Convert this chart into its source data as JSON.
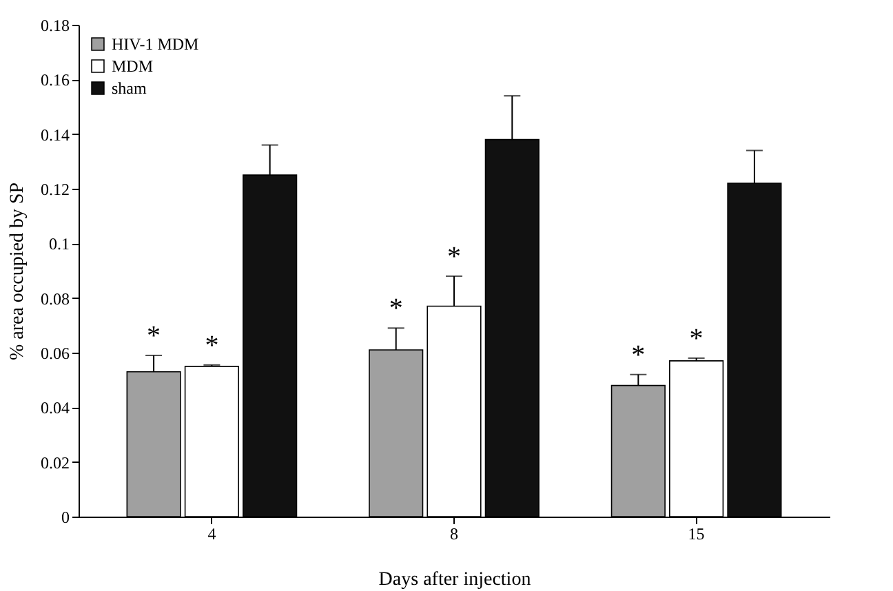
{
  "chart_data": {
    "type": "bar",
    "xlabel": "Days after injection",
    "ylabel": "% area occupied by SP",
    "categories": [
      "4",
      "8",
      "15"
    ],
    "series": [
      {
        "name": "HIV-1 MDM",
        "color": "#a0a0a0",
        "values": [
          0.053,
          0.061,
          0.048
        ],
        "errors": [
          [
            0.053,
            0.059
          ],
          [
            0.061,
            0.069
          ],
          [
            0.048,
            0.052
          ]
        ]
      },
      {
        "name": "MDM",
        "color": "#ffffff",
        "values": [
          0.055,
          0.077,
          0.057
        ],
        "errors": [
          [
            0.055,
            0.0555
          ],
          [
            0.077,
            0.088
          ],
          [
            0.057,
            0.058
          ]
        ]
      },
      {
        "name": "sham",
        "color": "#111111",
        "values": [
          0.125,
          0.138,
          0.122
        ],
        "errors": [
          [
            0.125,
            0.136
          ],
          [
            0.138,
            0.154
          ],
          [
            0.122,
            0.134
          ]
        ]
      }
    ],
    "ylim": [
      0,
      0.18
    ],
    "yticks": [
      0,
      0.02,
      0.04,
      0.06,
      0.08,
      0.1,
      0.12,
      0.14,
      0.16,
      0.18
    ],
    "legend": "top left",
    "grid": false,
    "annotations": [
      "*",
      "*",
      "*",
      "*",
      "*",
      "*"
    ]
  }
}
